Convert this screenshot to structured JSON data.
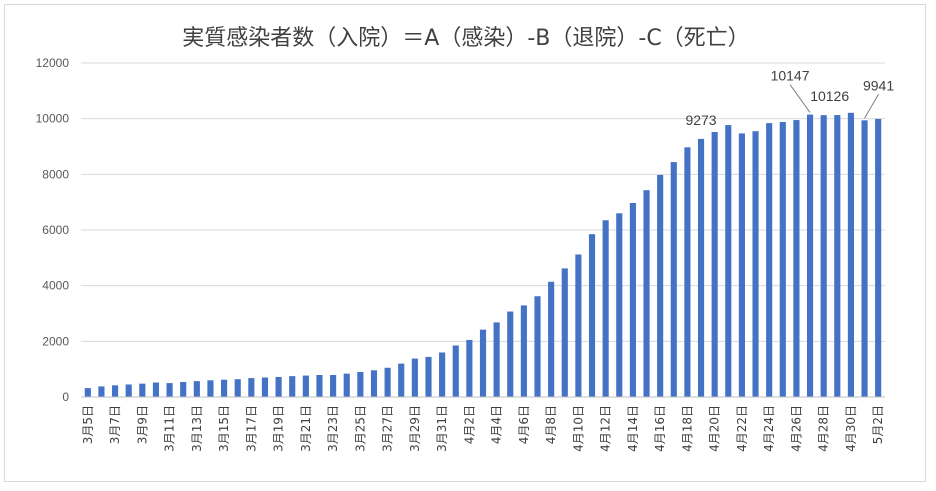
{
  "chart_data": {
    "type": "bar",
    "title": "実質感染者数（入院）＝A（感染）-B（退院）-C（死亡）",
    "xlabel": "",
    "ylabel": "",
    "ylim": [
      0,
      12000
    ],
    "yticks": [
      0,
      2000,
      4000,
      6000,
      8000,
      10000,
      12000
    ],
    "grid": true,
    "legend": "none",
    "bar_color": "#4472C4",
    "categories": [
      "3月5日",
      "3月6日",
      "3月7日",
      "3月8日",
      "3月9日",
      "3月10日",
      "3月11日",
      "3月12日",
      "3月13日",
      "3月14日",
      "3月15日",
      "3月16日",
      "3月17日",
      "3月18日",
      "3月19日",
      "3月20日",
      "3月21日",
      "3月22日",
      "3月23日",
      "3月24日",
      "3月25日",
      "3月26日",
      "3月27日",
      "3月28日",
      "3月29日",
      "3月30日",
      "3月31日",
      "4月1日",
      "4月2日",
      "4月3日",
      "4月4日",
      "4月5日",
      "4月6日",
      "4月7日",
      "4月8日",
      "4月9日",
      "4月10日",
      "4月11日",
      "4月12日",
      "4月13日",
      "4月14日",
      "4月15日",
      "4月16日",
      "4月17日",
      "4月18日",
      "4月19日",
      "4月20日",
      "4月21日",
      "4月22日",
      "4月23日",
      "4月24日",
      "4月25日",
      "4月26日",
      "4月27日",
      "4月28日",
      "4月29日",
      "4月30日",
      "5月1日",
      "5月2日"
    ],
    "visible_tick_labels": [
      "3月5日",
      "3月7日",
      "3月9日",
      "3月11日",
      "3月13日",
      "3月15日",
      "3月17日",
      "3月19日",
      "3月21日",
      "3月23日",
      "3月25日",
      "3月27日",
      "3月29日",
      "3月31日",
      "4月2日",
      "4月4日",
      "4月6日",
      "4月8日",
      "4月10日",
      "4月12日",
      "4月14日",
      "4月16日",
      "4月18日",
      "4月20日",
      "4月22日",
      "4月24日",
      "4月26日",
      "4月28日",
      "4月30日",
      "5月2日"
    ],
    "values": [
      320,
      380,
      420,
      450,
      480,
      520,
      500,
      540,
      570,
      600,
      620,
      640,
      680,
      700,
      720,
      750,
      770,
      790,
      790,
      840,
      900,
      960,
      1050,
      1200,
      1380,
      1440,
      1600,
      1850,
      2050,
      2420,
      2680,
      3070,
      3290,
      3620,
      4140,
      4620,
      5120,
      5850,
      6350,
      6600,
      6970,
      7430,
      7980,
      8440,
      8970,
      9273,
      9520,
      9770,
      9470,
      9550,
      9840,
      9880,
      9950,
      10147,
      10126,
      10130,
      10210,
      9941,
      9990
    ],
    "data_labels": [
      {
        "index": 45,
        "text": "9273"
      },
      {
        "index": 53,
        "text": "10147"
      },
      {
        "index": 54,
        "text": "10126"
      },
      {
        "index": 57,
        "text": "9941"
      }
    ]
  }
}
